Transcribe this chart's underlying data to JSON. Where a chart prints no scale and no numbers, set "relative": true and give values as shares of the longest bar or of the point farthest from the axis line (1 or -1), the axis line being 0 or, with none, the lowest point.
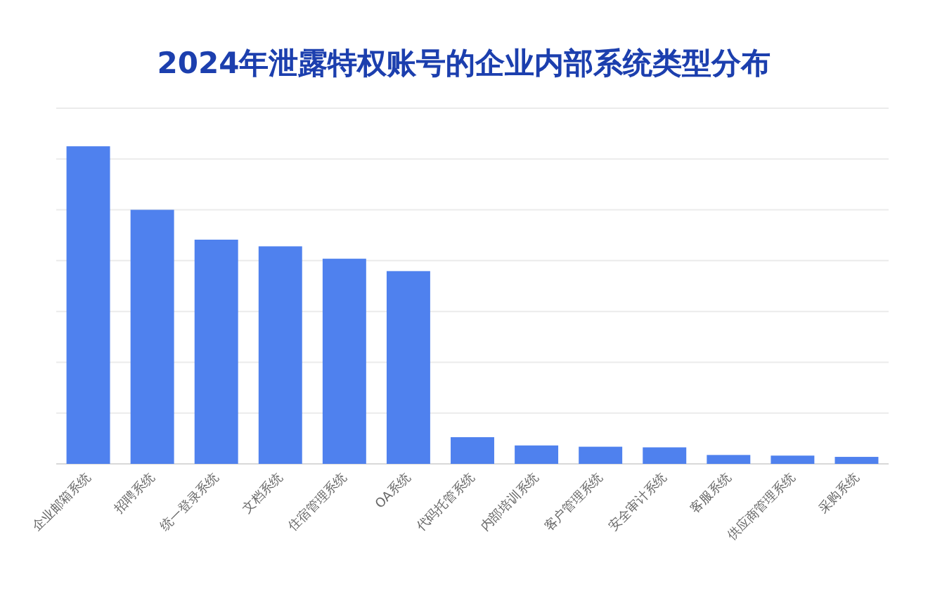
{
  "chart_data": {
    "type": "bar",
    "title": "2024年泄露特权账号的企业内部系统类型分布",
    "categories": [
      "企业邮箱系统",
      "招聘系统",
      "统一登录系统",
      "文档系统",
      "住宿管理系统",
      "OA系统",
      "代码托管系统",
      "内部培训系统",
      "客户管理系统",
      "安全审计系统",
      "客服系统",
      "供应商管理系统",
      "采购系统"
    ],
    "values": [
      1,
      0.8,
      0.706,
      0.685,
      0.646,
      0.607,
      0.084,
      0.058,
      0.054,
      0.052,
      0.028,
      0.026,
      0.022
    ],
    "color": "#4f81ee",
    "relative": true,
    "grid": "y"
  }
}
